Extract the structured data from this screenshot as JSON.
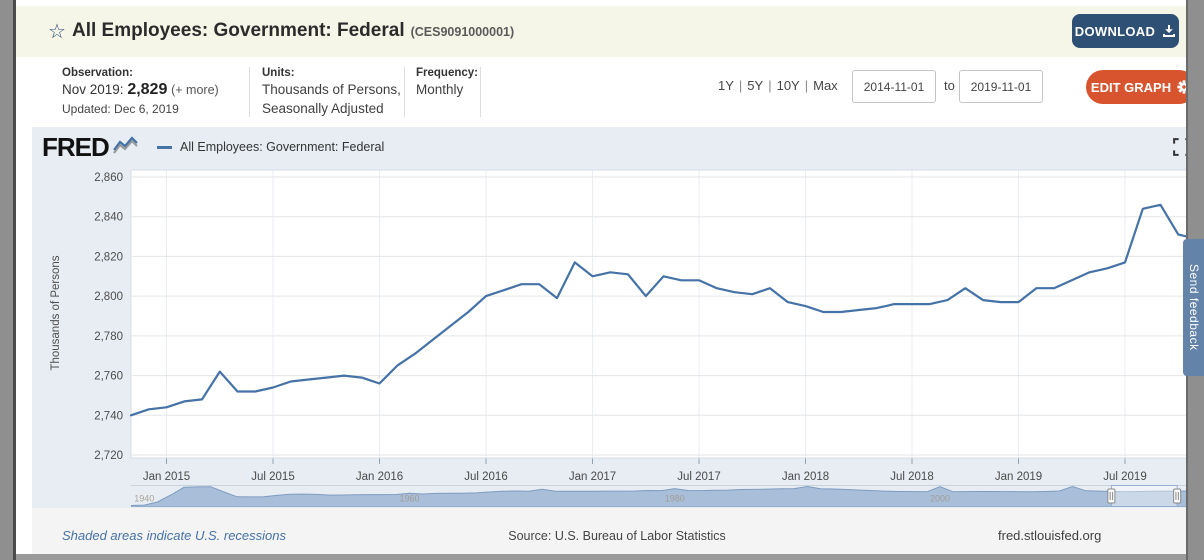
{
  "header": {
    "title": "All Employees: Government: Federal",
    "series_id": "(CES9091000001)",
    "download_label": "DOWNLOAD"
  },
  "meta": {
    "observation": {
      "label": "Observation:",
      "period": "Nov 2019:",
      "value": "2,829",
      "more": "(+ more)",
      "updated": "Updated: Dec 6, 2019"
    },
    "units": {
      "label": "Units:",
      "line1": "Thousands of Persons,",
      "line2": "Seasonally Adjusted"
    },
    "frequency": {
      "label": "Frequency:",
      "value": "Monthly"
    },
    "ranges": [
      "1Y",
      "5Y",
      "10Y",
      "Max"
    ],
    "range_separator": "|",
    "date_from": "2014-11-01",
    "to_label": "to",
    "date_to": "2019-11-01",
    "edit_graph_label": "EDIT GRAPH"
  },
  "chart": {
    "brand": "FRED",
    "legend_label": "All Employees: Government: Federal"
  },
  "chart_data": [
    {
      "type": "line",
      "title": "All Employees: Government: Federal",
      "ylabel": "Thousands of Persons",
      "ylim": [
        2720,
        2860
      ],
      "y_ticks": [
        2860,
        2840,
        2820,
        2800,
        2780,
        2760,
        2740,
        2720
      ],
      "y_tick_labels": [
        "2,860",
        "2,840",
        "2,820",
        "2,800",
        "2,780",
        "2,760",
        "2,740",
        "2,720"
      ],
      "x_tick_labels": [
        "Jan 2015",
        "Jul 2015",
        "Jan 2016",
        "Jul 2016",
        "Jan 2017",
        "Jul 2017",
        "Jan 2018",
        "Jul 2018",
        "Jan 2019",
        "Jul 2019"
      ],
      "x_tick_month_indices": [
        2,
        8,
        14,
        20,
        26,
        32,
        38,
        44,
        50,
        56
      ],
      "x_range": [
        "2014-11-01",
        "2019-11-01"
      ],
      "frequency": "Monthly",
      "grid": true,
      "series": [
        {
          "name": "All Employees: Government: Federal",
          "color": "#4572a7",
          "start": "2014-11",
          "values": [
            2740,
            2743,
            2744,
            2747,
            2748,
            2762,
            2752,
            2752,
            2754,
            2757,
            2758,
            2759,
            2760,
            2759,
            2756,
            2765,
            2771,
            2778,
            2785,
            2792,
            2800,
            2803,
            2806,
            2806,
            2799,
            2817,
            2810,
            2812,
            2811,
            2800,
            2810,
            2808,
            2808,
            2804,
            2802,
            2801,
            2804,
            2797,
            2795,
            2792,
            2792,
            2793,
            2794,
            2796,
            2796,
            2796,
            2798,
            2804,
            2798,
            2797,
            2797,
            2804,
            2804,
            2808,
            2812,
            2814,
            2817,
            2844,
            2846,
            2831,
            2829
          ]
        }
      ]
    },
    {
      "type": "area",
      "role": "range-navigator",
      "x_start_year": 1939,
      "x_end_year": 2019,
      "x_tick_labels": [
        "1940",
        "1960",
        "1980",
        "2000"
      ],
      "x_tick_years": [
        1940,
        1960,
        1980,
        2000
      ],
      "selection_frac": [
        0.924,
        0.986
      ],
      "fill": "#a9bfd9",
      "line": "#7e9cc0",
      "values": [
        950,
        1000,
        1400,
        2300,
        3300,
        3350,
        3375,
        2700,
        2075,
        2060,
        2075,
        2250,
        2400,
        2420,
        2380,
        2290,
        2300,
        2330,
        2350,
        2355,
        2370,
        2540,
        2430,
        2515,
        2530,
        2540,
        2580,
        2690,
        2790,
        2820,
        2790,
        3050,
        2790,
        2800,
        2780,
        2790,
        2810,
        2810,
        2820,
        2880,
        2870,
        3130,
        2890,
        2870,
        2910,
        2940,
        3010,
        3020,
        3070,
        3110,
        3130,
        3400,
        3110,
        3080,
        3010,
        2940,
        2870,
        2790,
        2760,
        2740,
        2720,
        3380,
        2720,
        2740,
        2760,
        2750,
        2740,
        2730,
        2720,
        2760,
        2820,
        3400,
        2840,
        2810,
        2760,
        2730,
        2760,
        2800,
        2805,
        2795,
        2830
      ]
    }
  ],
  "footer": {
    "recessions_note": "Shaded areas indicate U.S. recessions",
    "source": "Source: U.S. Bureau of Labor Statistics",
    "site": "fred.stlouisfed.org"
  },
  "feedback_tab": "Send feedback",
  "colors": {
    "header_bg": "#f5f5e8",
    "download_bg": "#2f5075",
    "edit_graph_bg": "#d7542e",
    "link_blue": "#4572a7",
    "line": "#4572a7",
    "chart_bg": "#e7edf3",
    "minimap_fill": "#a9bfd9",
    "feedback_bg": "#6383a8"
  }
}
